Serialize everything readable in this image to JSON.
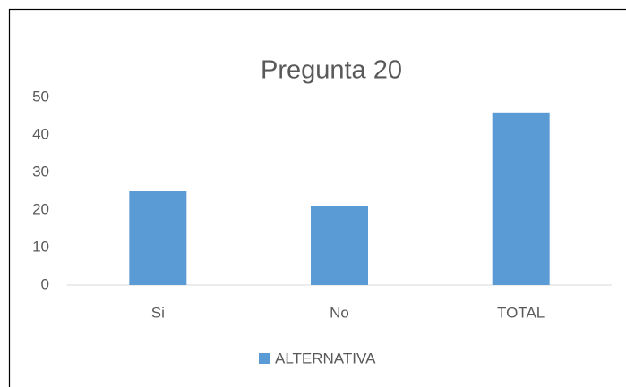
{
  "chart_data": {
    "type": "bar",
    "title": "Pregunta 20",
    "categories": [
      "Si",
      "No",
      "TOTAL"
    ],
    "series": [
      {
        "name": "ALTERNATIVA",
        "color": "#5b9bd5",
        "values": [
          25,
          21,
          46
        ]
      }
    ],
    "ylim": [
      0,
      50
    ],
    "yticks": [
      0,
      10,
      20,
      30,
      40,
      50
    ],
    "grid": false,
    "legend": "bottom"
  }
}
